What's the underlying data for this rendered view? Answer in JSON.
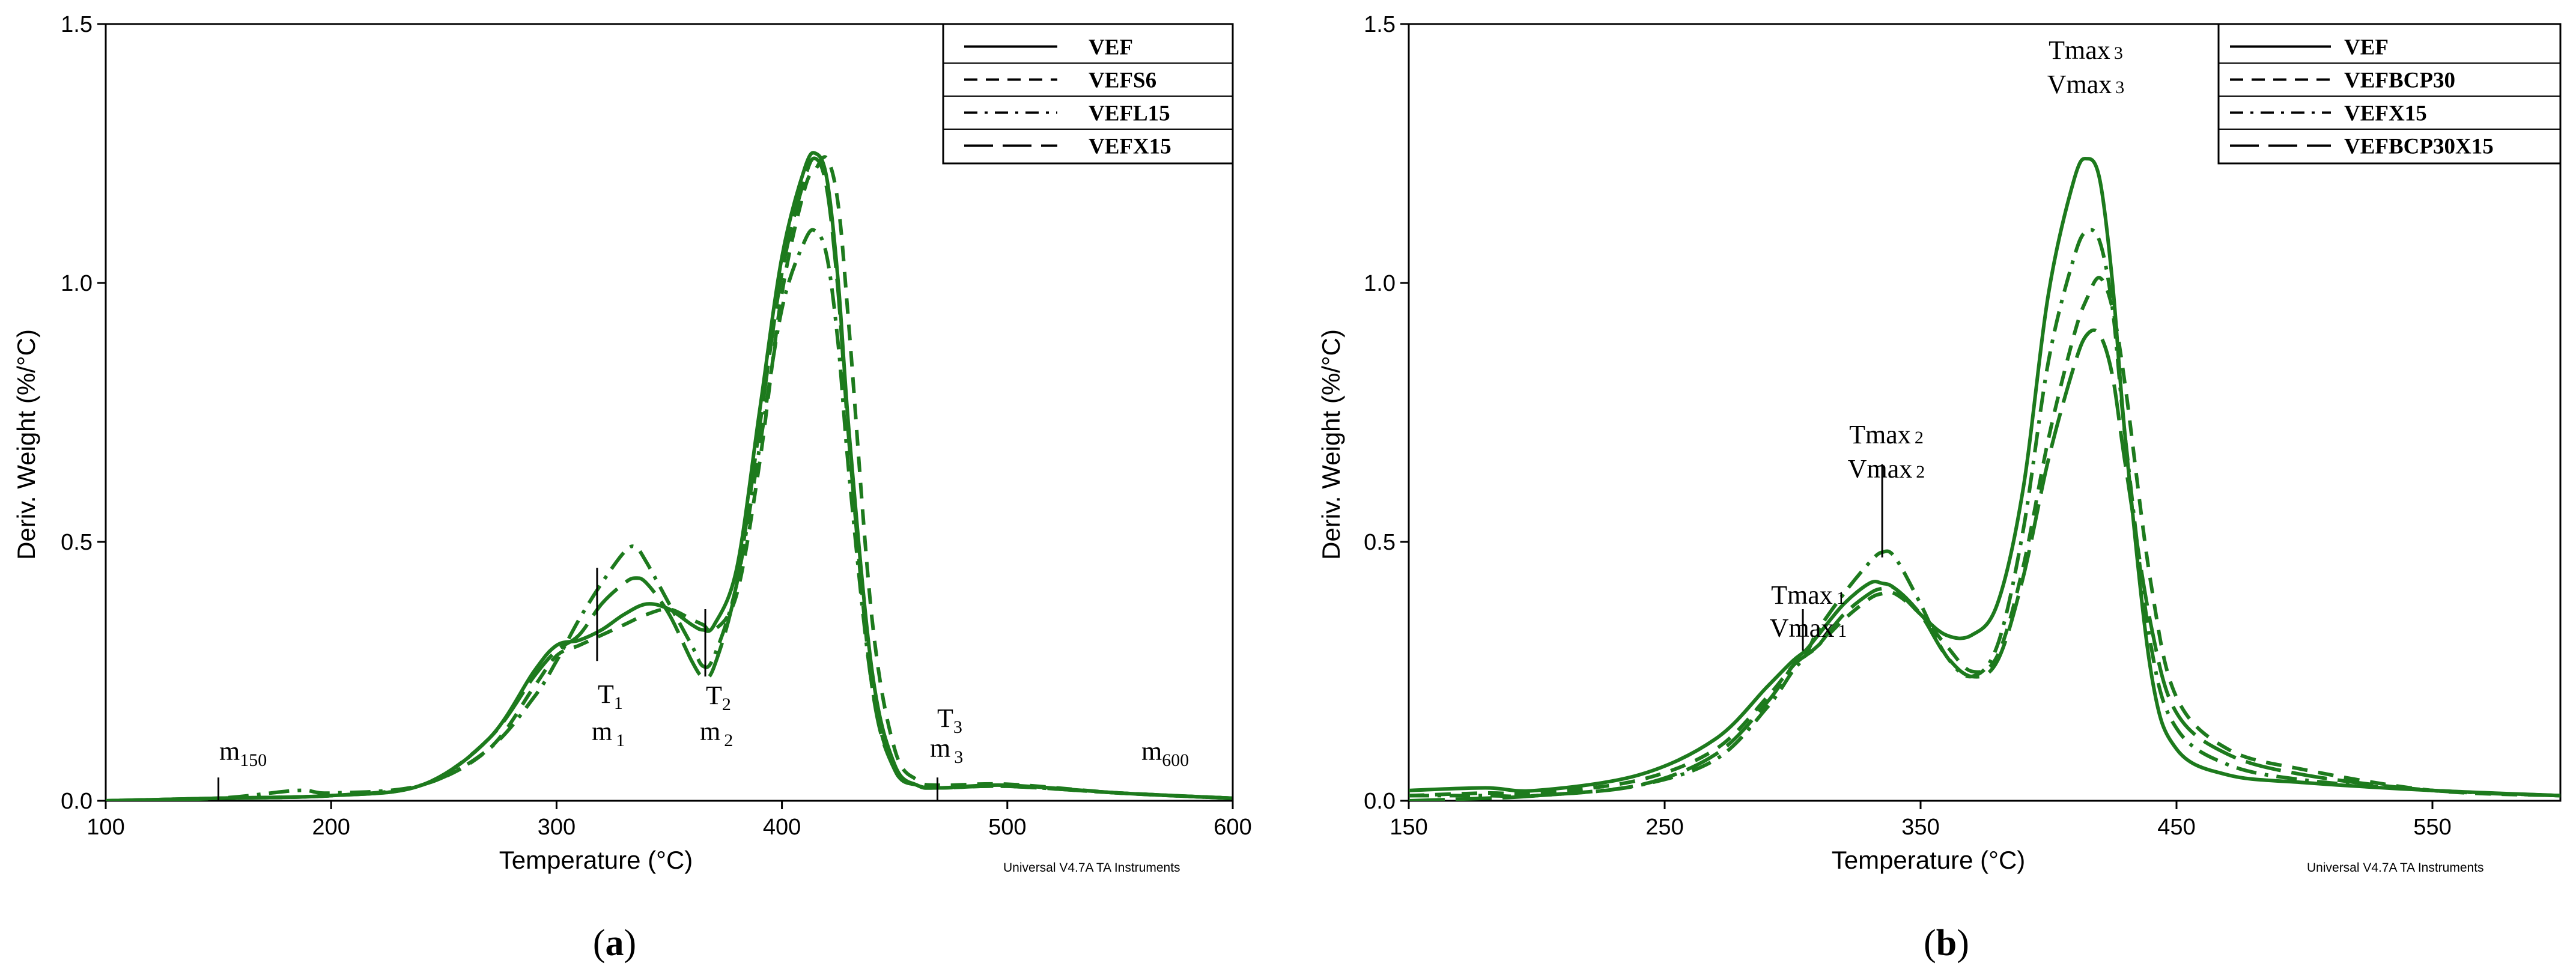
{
  "chart_data": [
    {
      "id": "a",
      "type": "line",
      "panel_label": {
        "open": "(",
        "letter": "a",
        "close": ")"
      },
      "xlabel": "Temperature (°C)",
      "ylabel": "Deriv. Weight (%/°C)",
      "xlim": [
        100,
        600
      ],
      "ylim": [
        0,
        1.5
      ],
      "xticks": [
        100,
        200,
        300,
        400,
        500,
        600
      ],
      "yticks": [
        0.0,
        0.5,
        1.0,
        1.5
      ],
      "ytick_labels": [
        "0.0",
        "0.5",
        "1.0",
        "1.5"
      ],
      "watermark": "Universal V4.7A TA Instruments",
      "legend": {
        "position": "top-right"
      },
      "series": [
        {
          "name": "VEF",
          "style": "solid",
          "x": [
            100,
            150,
            200,
            240,
            270,
            290,
            300,
            310,
            320,
            330,
            340,
            350,
            360,
            365,
            370,
            380,
            390,
            400,
            410,
            415,
            420,
            425,
            430,
            440,
            450,
            460,
            470,
            500,
            550,
            600
          ],
          "y": [
            0.0,
            0.005,
            0.01,
            0.03,
            0.12,
            0.25,
            0.3,
            0.31,
            0.33,
            0.36,
            0.38,
            0.37,
            0.34,
            0.33,
            0.34,
            0.45,
            0.75,
            1.05,
            1.22,
            1.25,
            1.2,
            1.0,
            0.7,
            0.25,
            0.07,
            0.03,
            0.025,
            0.03,
            0.015,
            0.005
          ]
        },
        {
          "name": "VEFS6",
          "style": "dashed",
          "x": [
            100,
            150,
            200,
            240,
            270,
            290,
            300,
            310,
            320,
            330,
            340,
            350,
            360,
            365,
            370,
            380,
            390,
            400,
            410,
            415,
            420,
            425,
            430,
            440,
            450,
            460,
            470,
            500,
            550,
            600
          ],
          "y": [
            0.0,
            0.005,
            0.01,
            0.03,
            0.1,
            0.22,
            0.28,
            0.3,
            0.32,
            0.34,
            0.36,
            0.37,
            0.35,
            0.34,
            0.33,
            0.4,
            0.65,
            0.98,
            1.18,
            1.22,
            1.24,
            1.15,
            0.9,
            0.35,
            0.1,
            0.04,
            0.03,
            0.032,
            0.015,
            0.005
          ]
        },
        {
          "name": "VEFL15",
          "style": "dashdot",
          "x": [
            100,
            150,
            185,
            200,
            240,
            270,
            290,
            300,
            310,
            320,
            330,
            335,
            340,
            350,
            360,
            365,
            370,
            380,
            390,
            400,
            410,
            415,
            420,
            425,
            430,
            440,
            450,
            460,
            470,
            500,
            550,
            600
          ],
          "y": [
            0.0,
            0.005,
            0.02,
            0.015,
            0.03,
            0.1,
            0.2,
            0.27,
            0.35,
            0.42,
            0.48,
            0.49,
            0.46,
            0.38,
            0.3,
            0.26,
            0.28,
            0.42,
            0.68,
            0.95,
            1.08,
            1.1,
            1.05,
            0.88,
            0.62,
            0.22,
            0.06,
            0.03,
            0.025,
            0.028,
            0.015,
            0.005
          ]
        },
        {
          "name": "VEFX15",
          "style": "longdash",
          "x": [
            100,
            150,
            200,
            240,
            270,
            290,
            300,
            310,
            320,
            330,
            335,
            340,
            350,
            360,
            365,
            370,
            380,
            390,
            400,
            410,
            415,
            420,
            425,
            430,
            440,
            450,
            460,
            470,
            500,
            550,
            600
          ],
          "y": [
            0.0,
            0.005,
            0.01,
            0.03,
            0.12,
            0.24,
            0.29,
            0.32,
            0.38,
            0.42,
            0.43,
            0.42,
            0.36,
            0.27,
            0.24,
            0.26,
            0.42,
            0.72,
            1.02,
            1.2,
            1.24,
            1.18,
            0.98,
            0.68,
            0.22,
            0.06,
            0.03,
            0.025,
            0.028,
            0.015,
            0.005
          ]
        }
      ],
      "annotations": [
        {
          "main": "m",
          "sub": "150",
          "x": 150,
          "line_y": [
            0.0,
            0.045
          ]
        },
        {
          "main": "T",
          "sub": "1",
          "main2": "m",
          "sub2": "1",
          "x": 318,
          "line_y": [
            0.27,
            0.45
          ]
        },
        {
          "main": "T",
          "sub": "2",
          "main2": "m",
          "sub2": "2",
          "x": 366,
          "line_y": [
            0.24,
            0.37
          ]
        },
        {
          "main": "T",
          "sub": "3",
          "main2": "m",
          "sub2": "3",
          "x": 469,
          "line_y": [
            0.0,
            0.045
          ]
        },
        {
          "main": "m",
          "sub": "600",
          "x": 600,
          "line_y": [
            0.0,
            0.045
          ]
        }
      ]
    },
    {
      "id": "b",
      "type": "line",
      "panel_label": {
        "open": "(",
        "letter": "b",
        "close": ")"
      },
      "xlabel": "Temperature (°C)",
      "ylabel": "Deriv. Weight (%/°C)",
      "xlim": [
        150,
        600
      ],
      "ylim": [
        0,
        1.5
      ],
      "xticks": [
        150,
        250,
        350,
        450,
        550
      ],
      "yticks": [
        0.0,
        0.5,
        1.0,
        1.5
      ],
      "ytick_labels": [
        "0.0",
        "0.5",
        "1.0",
        "1.5"
      ],
      "watermark": "Universal V4.7A TA Instruments",
      "legend": {
        "position": "top-right"
      },
      "series": [
        {
          "name": "VEF",
          "style": "solid",
          "x": [
            150,
            180,
            200,
            240,
            270,
            290,
            300,
            305,
            310,
            320,
            330,
            335,
            340,
            350,
            360,
            370,
            380,
            390,
            400,
            410,
            415,
            420,
            425,
            430,
            440,
            450,
            470,
            500,
            550,
            600
          ],
          "y": [
            0.02,
            0.025,
            0.02,
            0.05,
            0.12,
            0.22,
            0.27,
            0.29,
            0.32,
            0.38,
            0.42,
            0.42,
            0.41,
            0.36,
            0.32,
            0.32,
            0.38,
            0.6,
            0.98,
            1.2,
            1.24,
            1.2,
            1.0,
            0.7,
            0.25,
            0.1,
            0.05,
            0.035,
            0.02,
            0.01
          ]
        },
        {
          "name": "VEFBCP30",
          "style": "dashed",
          "x": [
            150,
            180,
            200,
            240,
            270,
            290,
            300,
            305,
            310,
            320,
            330,
            335,
            340,
            350,
            360,
            370,
            380,
            390,
            400,
            410,
            415,
            420,
            425,
            430,
            440,
            450,
            470,
            500,
            550,
            600
          ],
          "y": [
            0.01,
            0.015,
            0.015,
            0.04,
            0.1,
            0.2,
            0.26,
            0.28,
            0.3,
            0.35,
            0.39,
            0.4,
            0.4,
            0.36,
            0.3,
            0.25,
            0.28,
            0.45,
            0.7,
            0.9,
            0.97,
            1.01,
            0.95,
            0.8,
            0.42,
            0.2,
            0.1,
            0.06,
            0.02,
            0.01
          ]
        },
        {
          "name": "VEFX15",
          "style": "dashdot",
          "x": [
            150,
            180,
            200,
            240,
            270,
            290,
            300,
            305,
            310,
            320,
            330,
            335,
            340,
            350,
            360,
            370,
            380,
            390,
            400,
            410,
            415,
            420,
            425,
            430,
            440,
            450,
            470,
            500,
            550,
            600
          ],
          "y": [
            0.01,
            0.01,
            0.01,
            0.03,
            0.08,
            0.18,
            0.25,
            0.28,
            0.33,
            0.4,
            0.46,
            0.48,
            0.47,
            0.38,
            0.28,
            0.24,
            0.3,
            0.52,
            0.85,
            1.05,
            1.1,
            1.08,
            0.95,
            0.7,
            0.3,
            0.14,
            0.07,
            0.04,
            0.02,
            0.01
          ]
        },
        {
          "name": "VEFBCP30X15",
          "style": "longdash",
          "x": [
            150,
            180,
            200,
            240,
            270,
            290,
            300,
            305,
            310,
            320,
            330,
            335,
            340,
            350,
            360,
            370,
            380,
            390,
            400,
            410,
            415,
            420,
            425,
            430,
            440,
            450,
            470,
            500,
            550,
            600
          ],
          "y": [
            0.0,
            0.005,
            0.01,
            0.03,
            0.09,
            0.19,
            0.26,
            0.28,
            0.3,
            0.36,
            0.4,
            0.41,
            0.41,
            0.36,
            0.28,
            0.24,
            0.27,
            0.43,
            0.66,
            0.84,
            0.9,
            0.9,
            0.82,
            0.65,
            0.34,
            0.17,
            0.09,
            0.05,
            0.02,
            0.01
          ]
        }
      ],
      "annotations": [
        {
          "label1": "Tmax",
          "sub1": "1",
          "label2": "Vmax",
          "sub2": "1",
          "x": 304,
          "line_y": [
            0.29,
            0.37
          ]
        },
        {
          "label1": "Tmax",
          "sub1": "2",
          "label2": "Vmax",
          "sub2": "2",
          "x": 335,
          "line_y": [
            0.47,
            0.65
          ]
        },
        {
          "label1": "Tmax",
          "sub1": "3",
          "label2": "Vmax",
          "sub2": "3",
          "x": 413,
          "line_y": [
            1.25,
            1.25
          ]
        }
      ]
    }
  ],
  "colors": {
    "curve": "#1d7a1d",
    "axis": "#000000",
    "background": "#ffffff"
  }
}
